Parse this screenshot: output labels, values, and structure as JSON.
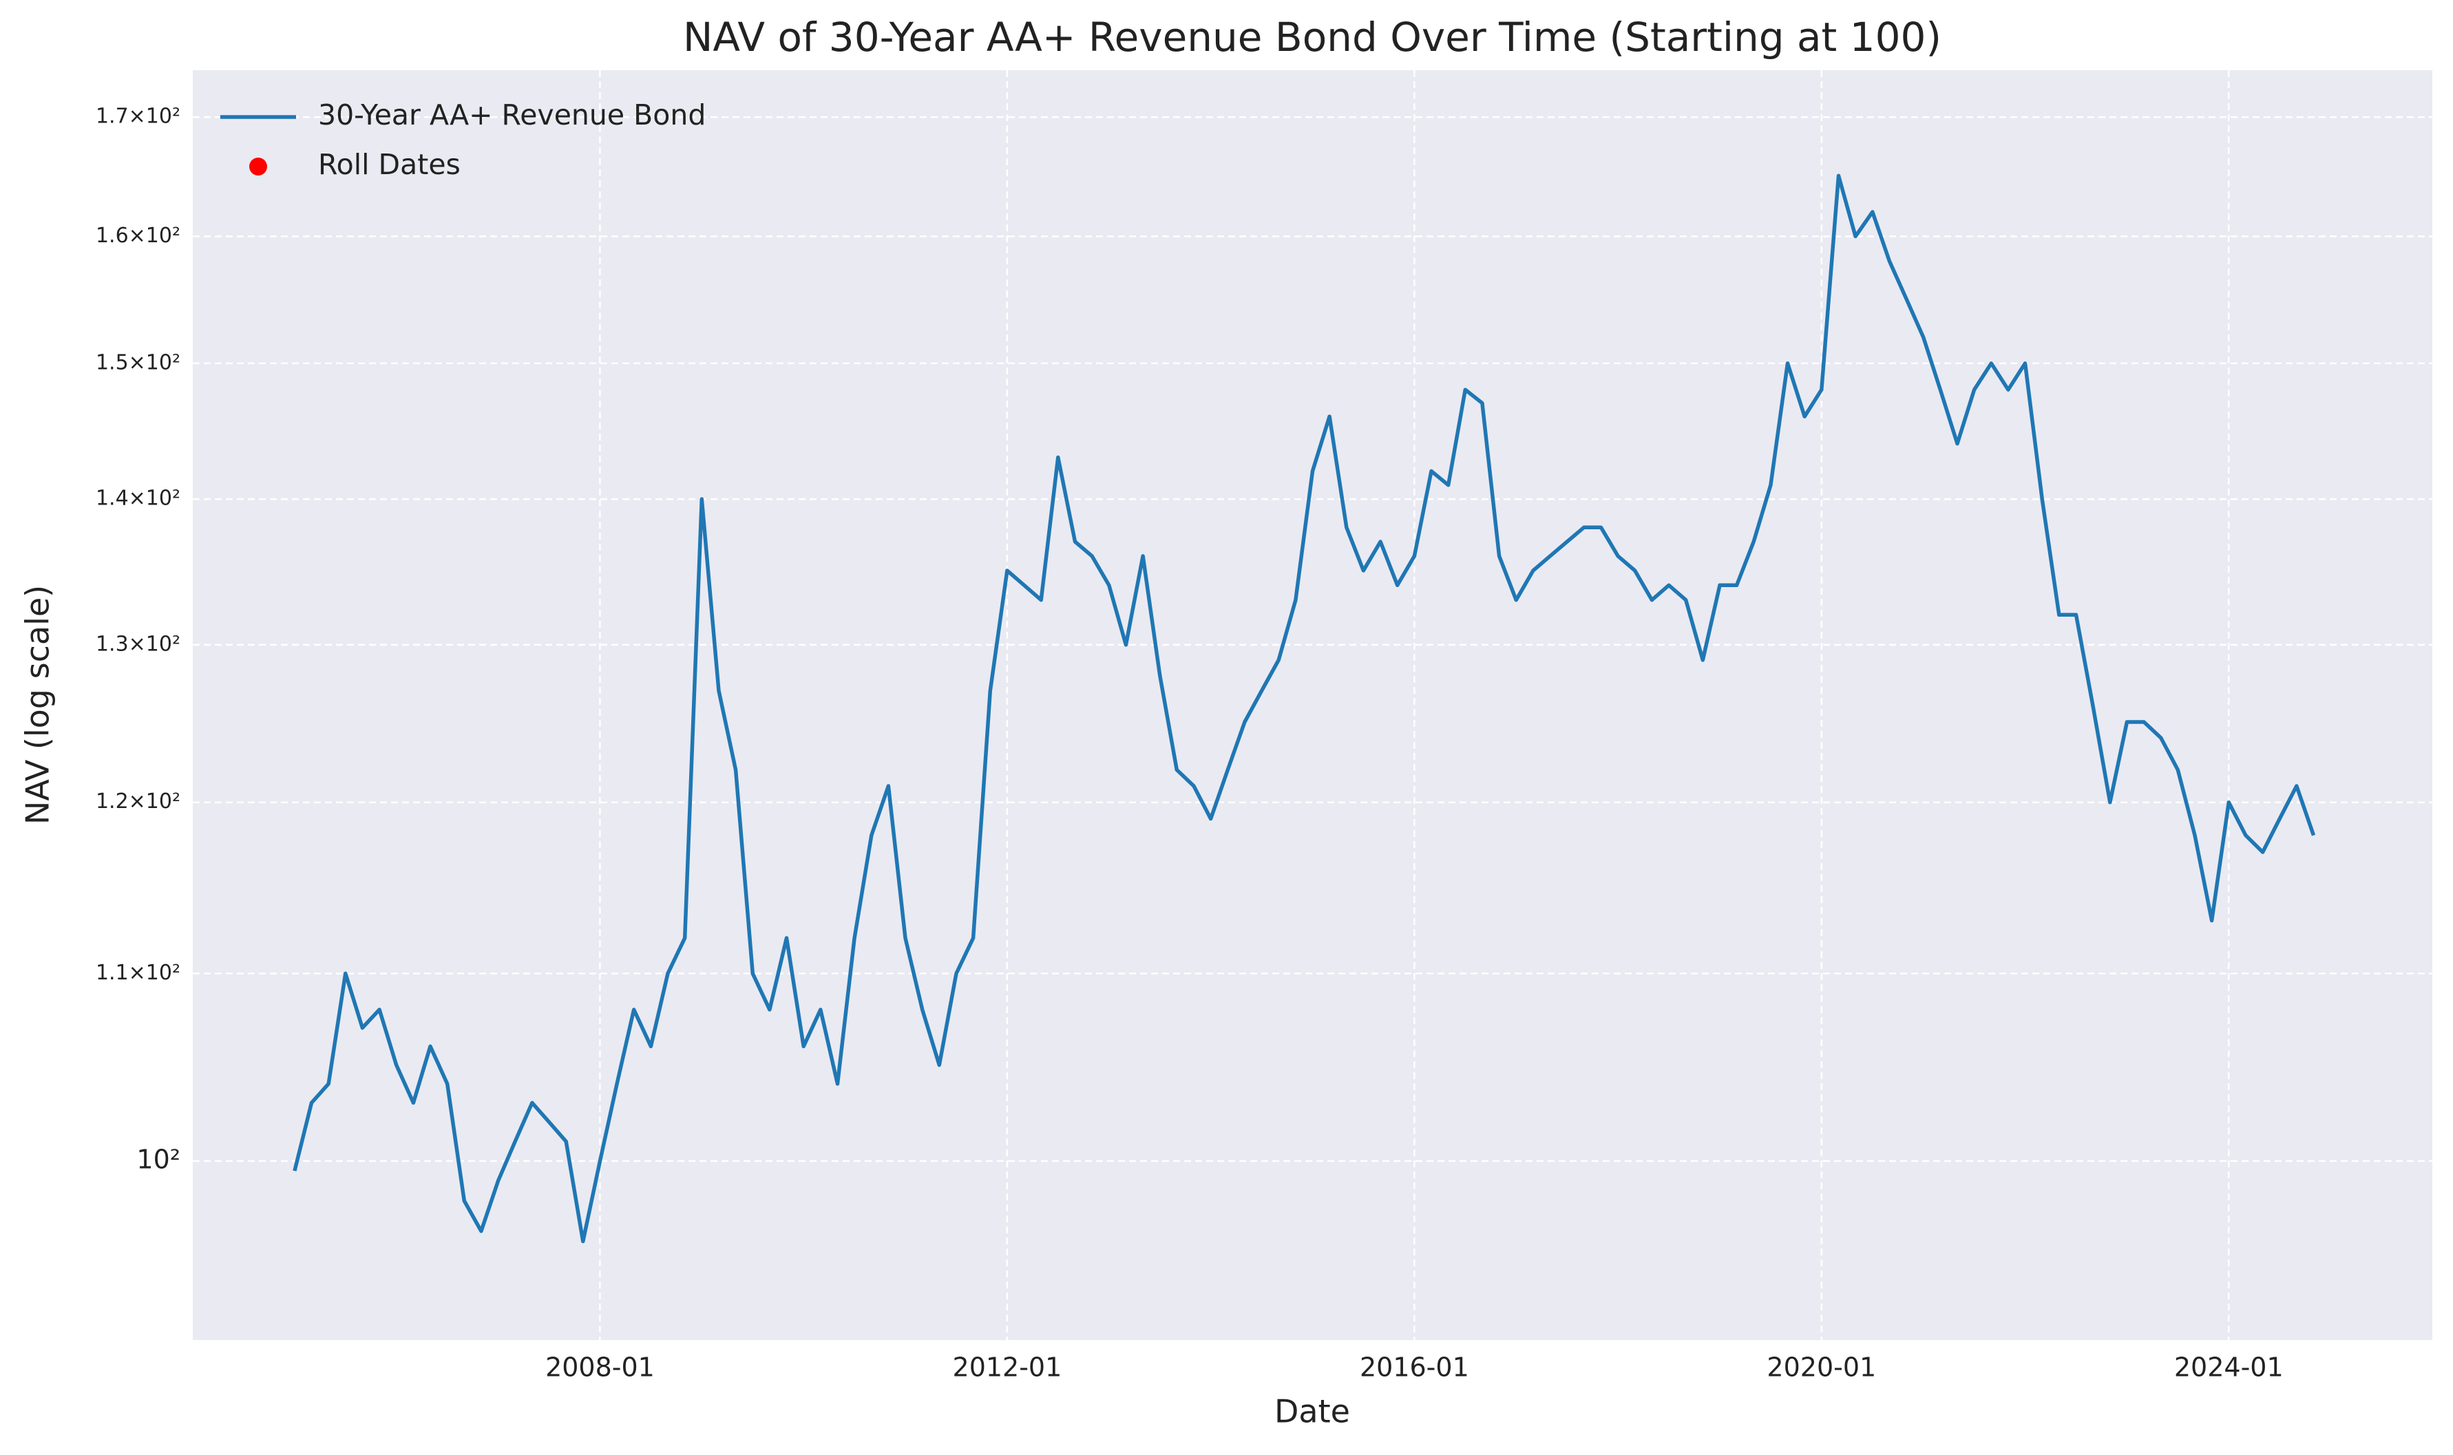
{
  "chart_data": {
    "type": "line",
    "title": "NAV of 30-Year AA+ Revenue Bond Over Time (Starting at 100)",
    "xlabel": "Date",
    "ylabel": "NAV (log scale)",
    "x": [
      "2005-01",
      "2005-03",
      "2005-05",
      "2005-07",
      "2005-09",
      "2005-11",
      "2006-01",
      "2006-03",
      "2006-05",
      "2006-07",
      "2006-09",
      "2006-11",
      "2007-01",
      "2007-03",
      "2007-05",
      "2007-07",
      "2007-09",
      "2007-11",
      "2008-01",
      "2008-03",
      "2008-05",
      "2008-07",
      "2008-09",
      "2008-11",
      "2009-01",
      "2009-03",
      "2009-05",
      "2009-07",
      "2009-09",
      "2009-11",
      "2010-01",
      "2010-03",
      "2010-05",
      "2010-07",
      "2010-09",
      "2010-11",
      "2011-01",
      "2011-03",
      "2011-05",
      "2011-07",
      "2011-09",
      "2011-11",
      "2012-01",
      "2012-03",
      "2012-05",
      "2012-07",
      "2012-09",
      "2012-11",
      "2013-01",
      "2013-03",
      "2013-05",
      "2013-07",
      "2013-09",
      "2013-11",
      "2014-01",
      "2014-03",
      "2014-05",
      "2014-07",
      "2014-09",
      "2014-11",
      "2015-01",
      "2015-03",
      "2015-05",
      "2015-07",
      "2015-09",
      "2015-11",
      "2016-01",
      "2016-03",
      "2016-05",
      "2016-07",
      "2016-09",
      "2016-11",
      "2017-01",
      "2017-03",
      "2017-05",
      "2017-07",
      "2017-09",
      "2017-11",
      "2018-01",
      "2018-03",
      "2018-05",
      "2018-07",
      "2018-09",
      "2018-11",
      "2019-01",
      "2019-03",
      "2019-05",
      "2019-07",
      "2019-09",
      "2019-11",
      "2020-01",
      "2020-03",
      "2020-05",
      "2020-07",
      "2020-09",
      "2020-11",
      "2021-01",
      "2021-03",
      "2021-05",
      "2021-07",
      "2021-09",
      "2021-11",
      "2022-01",
      "2022-03",
      "2022-05",
      "2022-07",
      "2022-09",
      "2022-11",
      "2023-01",
      "2023-03",
      "2023-05",
      "2023-07",
      "2023-09",
      "2023-11",
      "2024-01",
      "2024-03",
      "2024-05",
      "2024-07",
      "2024-09",
      "2024-11"
    ],
    "series": [
      {
        "name": "30-Year AA+ Revenue Bond",
        "type": "line",
        "color": "#1f77b4",
        "values": [
          99.5,
          103,
          104,
          110,
          107,
          108,
          105,
          103,
          106,
          104,
          98,
          96.5,
          99,
          101,
          103,
          102,
          101,
          96,
          100,
          104,
          108,
          106,
          110,
          112,
          140,
          127,
          122,
          110,
          108,
          112,
          106,
          108,
          104,
          112,
          118,
          121,
          112,
          108,
          105,
          110,
          112,
          127,
          135,
          134,
          133,
          143,
          137,
          136,
          134,
          130,
          136,
          128,
          122,
          121,
          119,
          122,
          125,
          127,
          129,
          133,
          142,
          146,
          138,
          135,
          137,
          134,
          136,
          142,
          141,
          148,
          147,
          136,
          133,
          135,
          136,
          137,
          138,
          138,
          136,
          135,
          133,
          134,
          133,
          129,
          134,
          134,
          137,
          141,
          150,
          146,
          148,
          165,
          160,
          162,
          158,
          155,
          152,
          148,
          144,
          148,
          150,
          148,
          150,
          140,
          132,
          132,
          126,
          120,
          125,
          125,
          124,
          122,
          118,
          113,
          120,
          118,
          117,
          119,
          121,
          118
        ]
      },
      {
        "name": "Roll Dates",
        "type": "scatter",
        "color": "#ff0000",
        "values": [
          null,
          null,
          null,
          null,
          null,
          null,
          null,
          null,
          null,
          null,
          null,
          null,
          null,
          null,
          null,
          null,
          null,
          null,
          null,
          null,
          null,
          null,
          null,
          null,
          null,
          null,
          null,
          null,
          null,
          null,
          null,
          null,
          null,
          null,
          null,
          null,
          null,
          null,
          null,
          null,
          null,
          null,
          null,
          null,
          null,
          null,
          null,
          null,
          null,
          null,
          null,
          null,
          null,
          null,
          null,
          null,
          null,
          null,
          null,
          null,
          null,
          null,
          null,
          null,
          null,
          null,
          null,
          null,
          null,
          null,
          null,
          null,
          null,
          null,
          null,
          null,
          null,
          null,
          null,
          null,
          null,
          null,
          null,
          null,
          null,
          null,
          null,
          null,
          null,
          null,
          null,
          null,
          null,
          null,
          null,
          null,
          null,
          null,
          null,
          null,
          null,
          null,
          null,
          null,
          null,
          null,
          null,
          null,
          null,
          null,
          null,
          null,
          null,
          null,
          null,
          null,
          null,
          null,
          null,
          null
        ]
      }
    ],
    "xlim": [
      "2004-01",
      "2026-01"
    ],
    "xticks": [
      "2008-01",
      "2012-01",
      "2016-01",
      "2020-01",
      "2024-01"
    ],
    "ylim": [
      91.3,
      174.1
    ],
    "yscale": "log",
    "yticks": [
      {
        "value": 100,
        "label": "10²"
      },
      {
        "value": 110,
        "label": "1.1×10²"
      },
      {
        "value": 120,
        "label": "1.2×10²"
      },
      {
        "value": 130,
        "label": "1.3×10²"
      },
      {
        "value": 140,
        "label": "1.4×10²"
      },
      {
        "value": 150,
        "label": "1.5×10²"
      },
      {
        "value": 160,
        "label": "1.6×10²"
      },
      {
        "value": 170,
        "label": "1.7×10²"
      }
    ],
    "grid": true,
    "legend": "upper left"
  }
}
